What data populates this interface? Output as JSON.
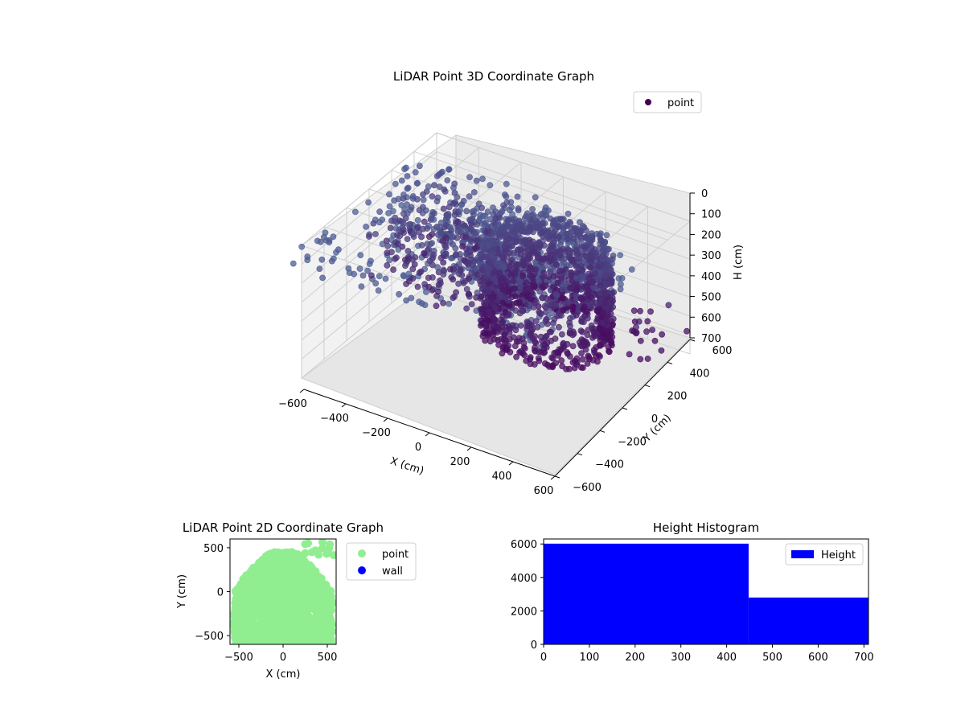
{
  "chart_data": [
    {
      "type": "scatter3d",
      "title": "LiDAR Point 3D Coordinate Graph",
      "xlabel": "X (cm)",
      "ylabel": "Y (cm)",
      "zlabel": "H (cm)",
      "xlim": [
        -600,
        600
      ],
      "ylim": [
        -600,
        600
      ],
      "zlim": [
        0,
        700
      ],
      "zinverted": true,
      "xticks": [
        -600,
        -400,
        -200,
        0,
        200,
        400,
        600
      ],
      "yticks": [
        -600,
        -400,
        -200,
        0,
        200,
        400,
        600
      ],
      "zticks": [
        0,
        100,
        200,
        300,
        400,
        500,
        600,
        700
      ],
      "grid": true,
      "legend": {
        "position": "top-right",
        "entries": [
          {
            "label": "point",
            "color": "#440154"
          }
        ]
      },
      "series": [
        {
          "name": "point",
          "colormap": "viridis-dark",
          "marker": "circle",
          "structure": "cylindrical scan rings and scattered returns"
        }
      ]
    },
    {
      "type": "scatter",
      "title": "LiDAR Point 2D Coordinate Graph",
      "xlabel": "X (cm)",
      "ylabel": "Y (cm)",
      "xlim": [
        -600,
        600
      ],
      "ylim": [
        -600,
        600
      ],
      "xticks": [
        -500,
        0,
        500
      ],
      "yticks": [
        -500,
        0,
        500
      ],
      "legend": {
        "position": "outside-right",
        "entries": [
          {
            "label": "point",
            "color": "#90ee90"
          },
          {
            "label": "wall",
            "color": "#0000ff"
          }
        ]
      },
      "series": [
        {
          "name": "point",
          "color": "#90ee90",
          "shape": "dense blob from y=-600 to y=550, x=-550 to 550"
        },
        {
          "name": "wall",
          "color": "#0000ff",
          "values": []
        }
      ]
    },
    {
      "type": "bar",
      "subtype": "histogram",
      "title": "Height Histogram",
      "xlim": [
        0,
        710
      ],
      "ylim": [
        0,
        6300
      ],
      "xticks": [
        0,
        100,
        200,
        300,
        400,
        500,
        600,
        700
      ],
      "yticks": [
        0,
        2000,
        4000,
        6000
      ],
      "bins": [
        {
          "start": 0,
          "end": 448,
          "count": 6020
        },
        {
          "start": 448,
          "end": 710,
          "count": 2800
        }
      ],
      "color": "#0000ff",
      "legend": {
        "position": "top-right",
        "entries": [
          {
            "label": "Height",
            "color": "#0000ff"
          }
        ]
      },
      "series": [
        {
          "name": "Height",
          "values": [
            6020,
            2800
          ]
        }
      ]
    }
  ]
}
